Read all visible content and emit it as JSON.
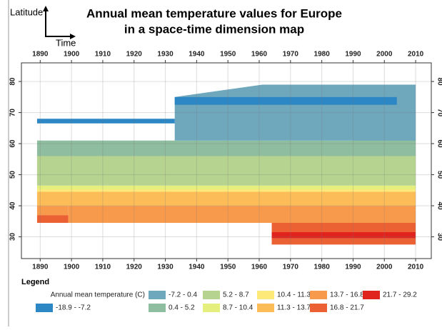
{
  "chart_data": {
    "type": "contour-map",
    "title": [
      "Annual mean temperature values for Europe",
      "in a space-time dimension map"
    ],
    "y_axis_label": "Latitude",
    "x_axis_label": "Time",
    "xlim": [
      1884,
      2015
    ],
    "ylim": [
      23,
      86
    ],
    "xticks": [
      1890,
      1900,
      1910,
      1920,
      1930,
      1940,
      1950,
      1960,
      1970,
      1980,
      1990,
      2000,
      2010
    ],
    "yticks": [
      30,
      40,
      50,
      60,
      70,
      80
    ],
    "grid": true,
    "legend_title": "Legend",
    "legend_subtitle": "Annual mean temperature (C)",
    "series": [
      {
        "name": "-18.9 - -7.2",
        "color": "#2d87c5",
        "areas": [
          {
            "x": [
              1889,
              1933,
              1933,
              1889
            ],
            "y": [
              66.5,
              66.5,
              68,
              68
            ]
          },
          {
            "x": [
              1933,
              2004,
              2004,
              1933
            ],
            "y": [
              72.5,
              72.5,
              75,
              75
            ]
          }
        ]
      },
      {
        "name": "-7.2 - 0.4",
        "color": "#6fa7bd",
        "areas": [
          {
            "x": [
              1889,
              1933,
              1933,
              1961,
              2010,
              2010,
              1889
            ],
            "y": [
              61,
              61,
              75,
              79,
              79,
              61,
              61
            ]
          }
        ]
      },
      {
        "name": "0.4 - 5.2",
        "color": "#8fbd9f",
        "areas": [
          {
            "x": [
              1889,
              2010,
              2010,
              1990,
              1889
            ],
            "y": [
              56,
              56,
              71,
              61,
              61
            ]
          }
        ]
      },
      {
        "name": "5.2 - 8.7",
        "color": "#b7d390",
        "areas": [
          {
            "x": [
              1889,
              2010,
              2010,
              1889
            ],
            "y": [
              46.5,
              46.5,
              56,
              56
            ]
          }
        ]
      },
      {
        "name": "8.7 - 10.4",
        "color": "#e5ef7d",
        "areas": [
          {
            "x": [
              1889,
              2010,
              2010,
              1889
            ],
            "y": [
              45.3,
              45.3,
              46.5,
              46.5
            ]
          }
        ]
      },
      {
        "name": "10.4 - 11.3",
        "color": "#fde87a",
        "areas": [
          {
            "x": [
              1889,
              2010,
              2010,
              1889
            ],
            "y": [
              44.5,
              44.5,
              45.3,
              45.3
            ]
          }
        ]
      },
      {
        "name": "11.3 - 13.7",
        "color": "#fcbd59",
        "areas": [
          {
            "x": [
              1889,
              2010,
              2010,
              1889
            ],
            "y": [
              40,
              40,
              44.5,
              44.5
            ]
          }
        ]
      },
      {
        "name": "13.7 - 16.8",
        "color": "#f89a4b",
        "areas": [
          {
            "x": [
              1899,
              2010,
              2010,
              1899
            ],
            "y": [
              34.5,
              34.5,
              40,
              40
            ]
          },
          {
            "x": [
              1889,
              1899,
              1899,
              1889
            ],
            "y": [
              37,
              37,
              40,
              40
            ]
          }
        ]
      },
      {
        "name": "16.8 - 21.7",
        "color": "#ec6133",
        "areas": [
          {
            "x": [
              1889,
              1899,
              1899,
              1889
            ],
            "y": [
              34.5,
              34.5,
              37,
              37
            ]
          },
          {
            "x": [
              1964,
              2010,
              2010,
              1964
            ],
            "y": [
              31.5,
              31.5,
              34.5,
              34.5
            ]
          },
          {
            "x": [
              1964,
              2010,
              2010,
              1964
            ],
            "y": [
              27.5,
              27.5,
              29.5,
              29.5
            ]
          }
        ]
      },
      {
        "name": "21.7 - 29.2",
        "color": "#e1231e",
        "areas": [
          {
            "x": [
              1964,
              2010,
              2010,
              1964
            ],
            "y": [
              29.5,
              29.5,
              31.5,
              31.5
            ]
          }
        ]
      }
    ]
  }
}
